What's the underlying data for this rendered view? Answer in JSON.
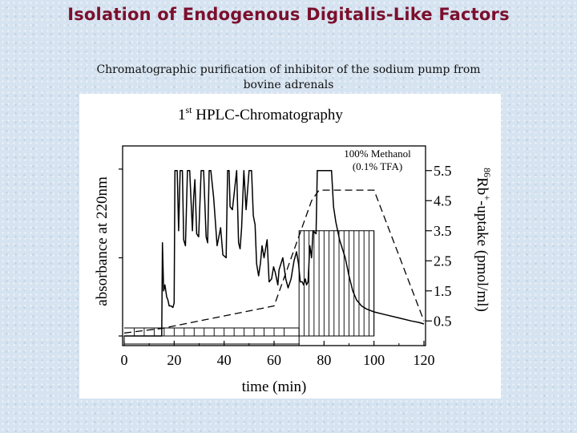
{
  "slide": {
    "title": "Isolation of Endogenous Digitalis-Like Factors",
    "subtitle_line1": "Chromatographic purification of inhibitor of the sodium pump from",
    "subtitle_line2": "bovine adrenals"
  },
  "chart_data": {
    "type": "line",
    "title_prefix": "1",
    "title_sup": "st",
    "title_main": " HPLC-Chromatography",
    "xlabel": "time (min)",
    "ylabel_left": "absorbance at  220nm",
    "ylabel_right_sup": "86",
    "ylabel_right_main": "Rb",
    "ylabel_right_sup2": "+",
    "ylabel_right_rest": "-uptake (pmol/ml)",
    "xlim": [
      0,
      120
    ],
    "x_ticks": [
      0,
      20,
      40,
      60,
      80,
      100,
      120
    ],
    "x_tick_labels": [
      "0",
      "20",
      "40",
      "60",
      "80",
      "100",
      "120"
    ],
    "y_right_lim": [
      0,
      6
    ],
    "y_right_ticks": [
      0.5,
      1.5,
      2.5,
      3.5,
      4.5,
      5.5
    ],
    "y_right_tick_labels": [
      "0.5",
      "1.5",
      "2.5",
      "3.5",
      "4.5",
      "5.5"
    ],
    "annotation_line1": "100% Methanol",
    "annotation_line2": "(0.1% TFA)",
    "grid": false,
    "series": [
      {
        "style": "solid",
        "x": [
          0,
          15,
          15.3,
          15.8,
          16.3,
          17,
          17.5,
          18,
          18.7,
          19.5,
          20,
          20.3,
          21.2,
          21.8,
          22.4,
          23.3,
          23.8,
          24.5,
          25.3,
          26.2,
          27.3,
          27.8,
          28.3,
          29,
          29.8,
          30.8,
          31.8,
          32.8,
          33.4,
          34,
          34.7,
          35.8,
          37.2,
          38.6,
          39.5,
          40.8,
          41.4,
          42,
          42.4,
          43.3,
          45,
          45.8,
          46.4,
          47,
          47.9,
          48.8,
          50,
          51,
          51.7,
          52.4,
          53,
          53.8,
          54.5,
          55.2,
          56,
          57.2,
          58,
          59,
          59.8,
          60.5,
          61.5,
          62,
          63.5,
          64.7,
          65.6,
          66.8,
          68,
          69,
          69.8,
          70.5,
          71.3,
          71.8,
          72.5,
          73,
          73.6,
          74.3,
          75,
          75.6,
          76.8,
          77.3,
          83,
          83.8,
          84.7,
          86.2,
          88.5,
          90,
          91.5,
          93,
          95,
          97,
          100,
          105,
          110,
          115,
          118,
          120
        ],
        "y": [
          0.0,
          0.0,
          3.1,
          1.5,
          1.7,
          1.3,
          1.2,
          1.0,
          1.0,
          0.95,
          1.1,
          5.5,
          5.5,
          3.5,
          5.5,
          5.5,
          3.2,
          3.0,
          5.5,
          5.5,
          3.5,
          4.6,
          5.2,
          3.4,
          3.3,
          5.5,
          5.5,
          3.3,
          3.1,
          5.5,
          5.5,
          4.6,
          3.0,
          3.6,
          2.7,
          2.6,
          5.5,
          5.5,
          4.3,
          4.2,
          5.5,
          3.1,
          2.9,
          3.6,
          5.5,
          4.2,
          5.5,
          5.5,
          4.0,
          3.7,
          2.4,
          2.0,
          2.4,
          3.0,
          2.6,
          3.2,
          1.8,
          1.9,
          2.3,
          2.1,
          1.7,
          2.2,
          2.6,
          1.9,
          1.6,
          1.9,
          2.5,
          2.8,
          2.4,
          1.8,
          1.8,
          1.7,
          1.9,
          1.7,
          1.8,
          3.0,
          2.6,
          3.5,
          3.4,
          5.5,
          5.5,
          4.3,
          3.8,
          3.2,
          2.6,
          2.0,
          1.5,
          1.2,
          1.0,
          0.9,
          0.8,
          0.7,
          0.6,
          0.5,
          0.45,
          0.4
        ]
      },
      {
        "style": "dashed",
        "x": [
          0,
          15,
          60,
          75,
          78,
          96,
          100,
          120
        ],
        "y": [
          0.1,
          0.25,
          1.0,
          4.5,
          4.85,
          4.85,
          4.85,
          0.5
        ]
      }
    ],
    "fractions": {
      "style": "stepped-bars",
      "x_start": [
        0,
        70
      ],
      "x_end": [
        70,
        100
      ],
      "y": [
        0.0,
        3.5
      ],
      "fraction_edges": [
        4,
        8,
        12,
        16,
        20,
        24,
        28,
        32,
        36,
        40,
        44,
        48,
        52,
        56,
        60,
        64,
        70,
        72,
        74,
        76,
        78,
        80,
        82,
        84,
        86,
        88,
        90,
        92,
        94,
        96,
        98,
        100
      ]
    }
  }
}
